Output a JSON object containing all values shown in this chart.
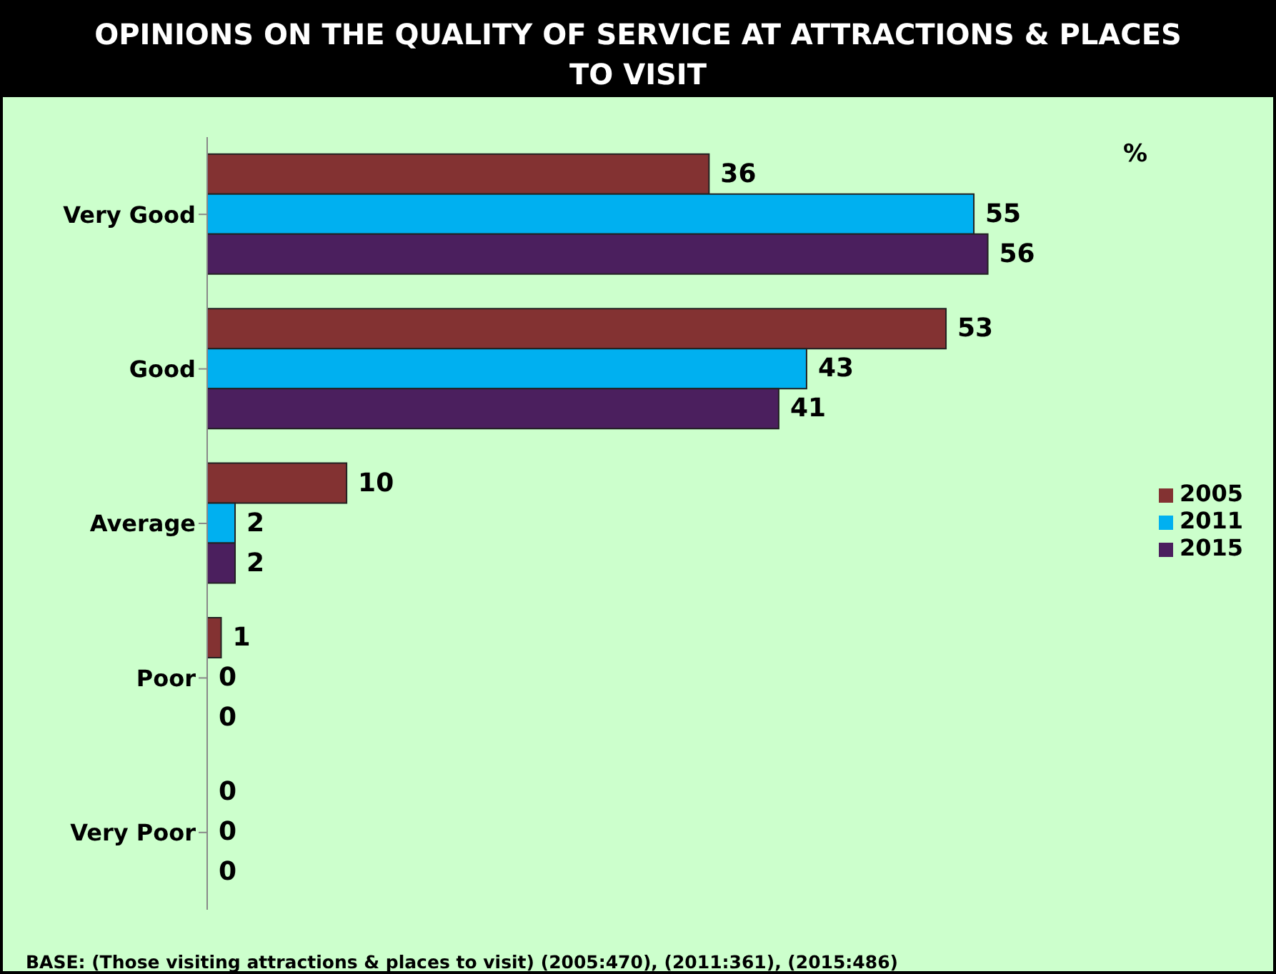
{
  "chart_data": {
    "type": "bar",
    "orientation": "horizontal",
    "title": "OPINIONS ON THE QUALITY OF SERVICE AT ATTRACTIONS & PLACES TO VISIT",
    "categories": [
      "Very Good",
      "Good",
      "Average",
      "Poor",
      "Very Poor"
    ],
    "series": [
      {
        "name": "2005",
        "color": "#833232",
        "values": [
          36,
          53,
          10,
          1,
          0
        ]
      },
      {
        "name": "2011",
        "color": "#00b0f0",
        "values": [
          55,
          43,
          2,
          0,
          0
        ]
      },
      {
        "name": "2015",
        "color": "#4b1f5e",
        "values": [
          56,
          41,
          2,
          0,
          0
        ]
      }
    ],
    "data_labels": true,
    "legend": "right",
    "annotations": [
      "%",
      "BASE: (Those visiting attractions & places to visit) (2005:470), (2011:361), (2015:486)"
    ]
  }
}
